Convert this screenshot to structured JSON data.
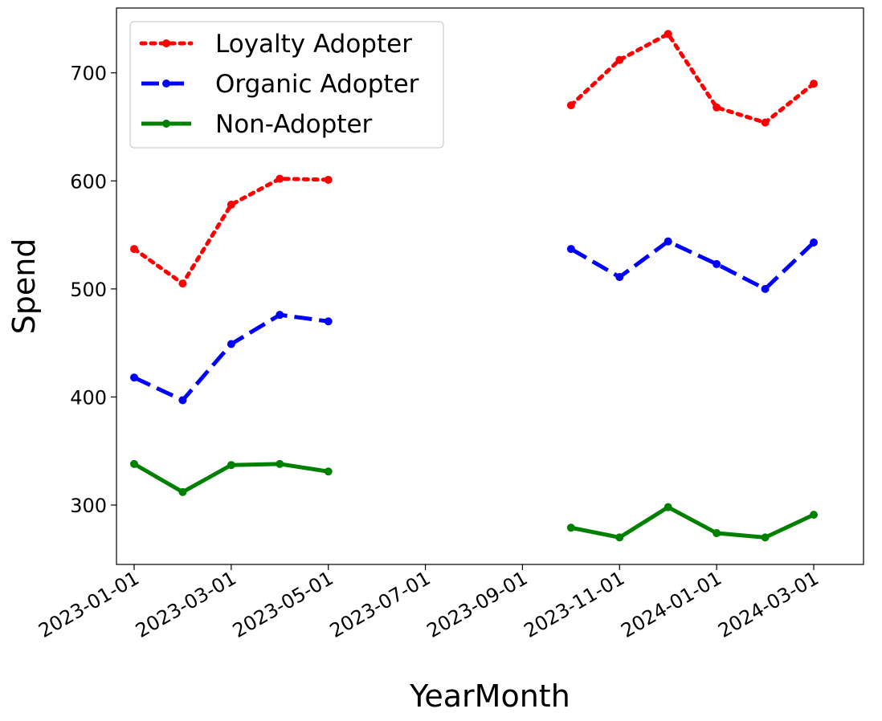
{
  "chart_data": {
    "type": "line",
    "xlabel": "YearMonth",
    "ylabel": "Spend",
    "ylim": [
      245,
      760
    ],
    "yticks": [
      300,
      400,
      500,
      600,
      700
    ],
    "x_dates": [
      "2023-01-01",
      "2023-02-01",
      "2023-03-01",
      "2023-04-01",
      "2023-05-01",
      "2023-06-01",
      "2023-07-01",
      "2023-08-01",
      "2023-09-01",
      "2023-10-01",
      "2023-11-01",
      "2023-12-01",
      "2024-01-01",
      "2024-02-01",
      "2024-03-01"
    ],
    "xtick_labels": [
      "2023-01-01",
      "2023-03-01",
      "2023-05-01",
      "2023-07-01",
      "2023-09-01",
      "2023-11-01",
      "2024-01-01",
      "2024-03-01"
    ],
    "xtick_indices": [
      0,
      2,
      4,
      6,
      8,
      10,
      12,
      14
    ],
    "legend_position": "top-left",
    "series": [
      {
        "name": "Loyalty Adopter",
        "color": "#ff0000",
        "style": "dotted",
        "values": [
          537,
          505,
          578,
          602,
          601,
          null,
          null,
          null,
          null,
          670,
          712,
          736,
          668,
          654,
          690
        ]
      },
      {
        "name": "Organic Adopter",
        "color": "#0000ff",
        "style": "dashed",
        "values": [
          418,
          397,
          449,
          476,
          470,
          null,
          null,
          null,
          null,
          537,
          511,
          544,
          523,
          500,
          543
        ]
      },
      {
        "name": "Non-Adopter",
        "color": "#008000",
        "style": "solid",
        "values": [
          338,
          312,
          337,
          338,
          331,
          null,
          null,
          null,
          null,
          279,
          270,
          298,
          274,
          270,
          291
        ]
      }
    ]
  }
}
